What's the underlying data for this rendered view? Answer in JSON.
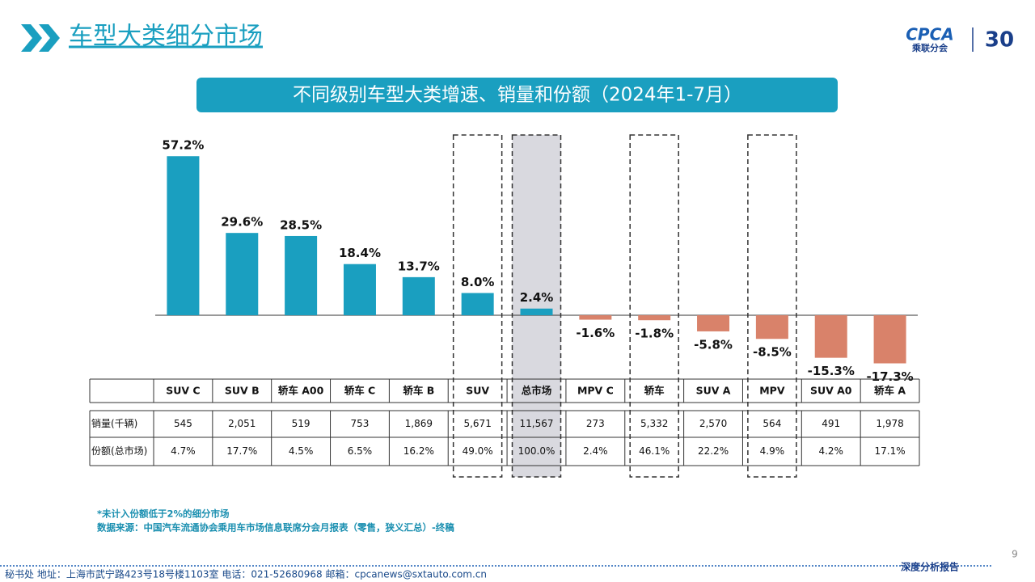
{
  "header": {
    "title": "车型大类细分市场"
  },
  "logo": {
    "brand": "CPCA",
    "name": "乘联分会",
    "anniversary": "30"
  },
  "chart_data": {
    "type": "bar",
    "title": "不同级别车型大类增速、销量和份额（2024年1-7月）",
    "categories": [
      "SUV C",
      "SUV B",
      "轿车 A00",
      "轿车 C",
      "轿车 B",
      "SUV",
      "总市场",
      "MPV C",
      "轿车",
      "SUV A",
      "MPV",
      "SUV A0",
      "轿车 A"
    ],
    "values": [
      57.2,
      29.6,
      28.5,
      18.4,
      13.7,
      8.0,
      2.4,
      -1.6,
      -1.8,
      -5.8,
      -8.5,
      -15.3,
      -17.3
    ],
    "value_labels": [
      "57.2%",
      "29.6%",
      "28.5%",
      "18.4%",
      "13.7%",
      "8.0%",
      "2.4%",
      "-1.6%",
      "-1.8%",
      "-5.8%",
      "-8.5%",
      "-15.3%",
      "-17.3%"
    ],
    "color": "#1a9fc0",
    "negative_color": "#d9826a"
  },
  "table": {
    "rows": [
      {
        "label": "销量(千辆)",
        "cells": [
          "545",
          "2,051",
          "519",
          "753",
          "1,869",
          "5,671",
          "11,567",
          "273",
          "5,332",
          "2,570",
          "564",
          "491",
          "1,978"
        ]
      },
      {
        "label": "份额(总市场)",
        "cells": [
          "4.7%",
          "17.7%",
          "4.5%",
          "6.5%",
          "16.2%",
          "49.0%",
          "100.0%",
          "2.4%",
          "46.1%",
          "22.2%",
          "4.9%",
          "4.2%",
          "17.1%"
        ]
      }
    ]
  },
  "notes": [
    "*未计入份额低于2%的细分市场",
    "数据来源：中国汽车流通协会乘用车市场信息联席分会月报表（零售，狭义汇总）-终稿"
  ],
  "footer": {
    "address": "秘书处   地址：上海市武宁路423号18号楼1103室   电话：021-52680968   邮箱：cpcanews@sxtauto.com.cn",
    "tag": "深度分析报告",
    "page": "9"
  }
}
